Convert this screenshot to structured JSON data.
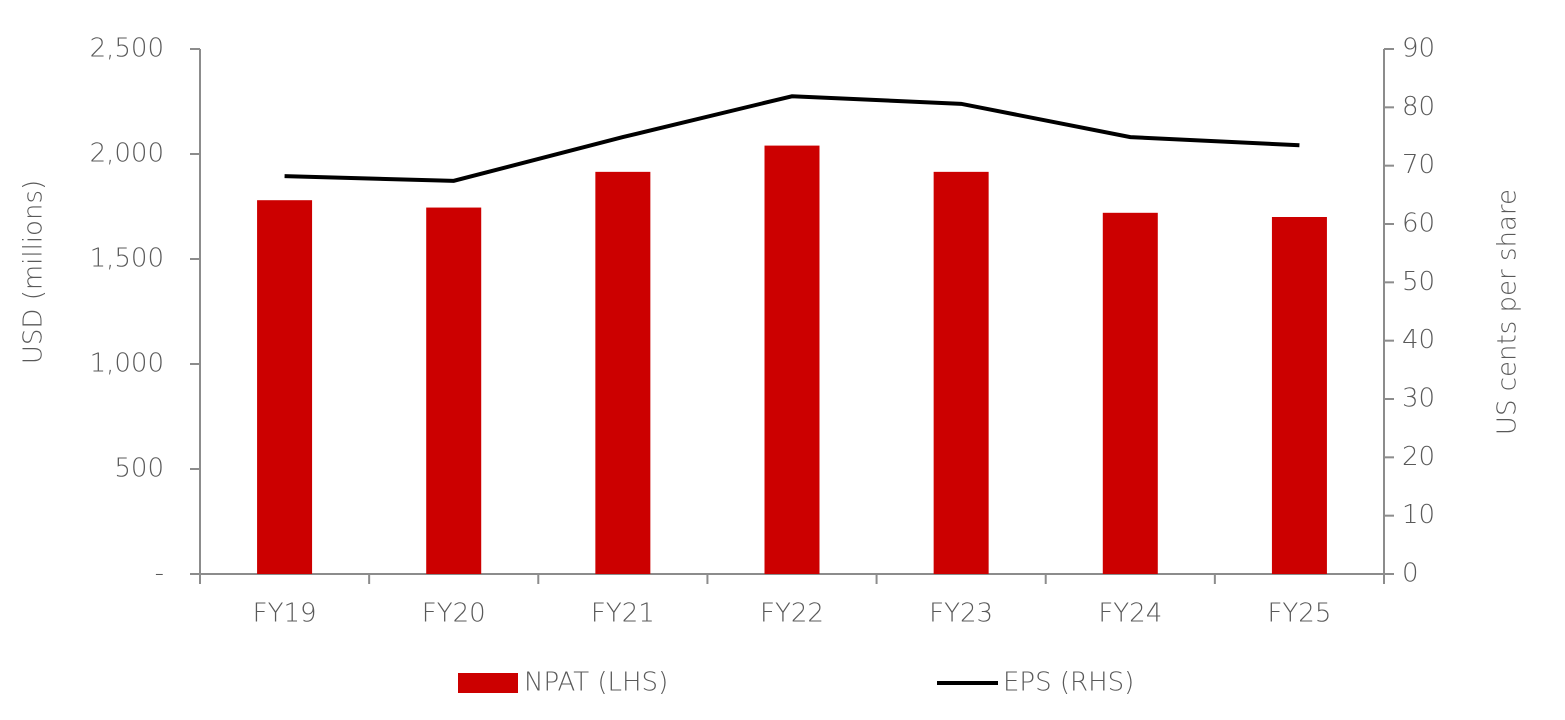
{
  "chart_data": {
    "type": "bar_line",
    "categories": [
      "FY19",
      "FY20",
      "FY21",
      "FY22",
      "FY23",
      "FY24",
      "FY25"
    ],
    "series": [
      {
        "name": "NPAT (LHS)",
        "type": "bar",
        "color": "#cc0000",
        "values": [
          1780,
          1745,
          1915,
          2040,
          1915,
          1720,
          1700
        ]
      },
      {
        "name": "EPS (RHS)",
        "type": "line",
        "axis": "y2",
        "color": "#000000",
        "values": [
          68.2,
          67.4,
          74.9,
          81.9,
          80.6,
          74.9,
          73.5
        ]
      }
    ],
    "ylabel": "USD (millions)",
    "y2label": "US cents per share",
    "ylim": [
      0,
      2500
    ],
    "yticks": [
      {
        "value": 0,
        "label": "-"
      },
      500,
      {
        "value": 1000,
        "label": "1,000"
      },
      {
        "value": 1500,
        "label": "1,500"
      },
      {
        "value": 2000,
        "label": "2,000"
      },
      {
        "value": 2500,
        "label": "2,500"
      }
    ],
    "y2lim": [
      0,
      90
    ],
    "y2ticks": [
      0,
      10,
      20,
      30,
      40,
      50,
      60,
      70,
      80,
      90
    ],
    "grid": false,
    "legend": "bottom"
  }
}
